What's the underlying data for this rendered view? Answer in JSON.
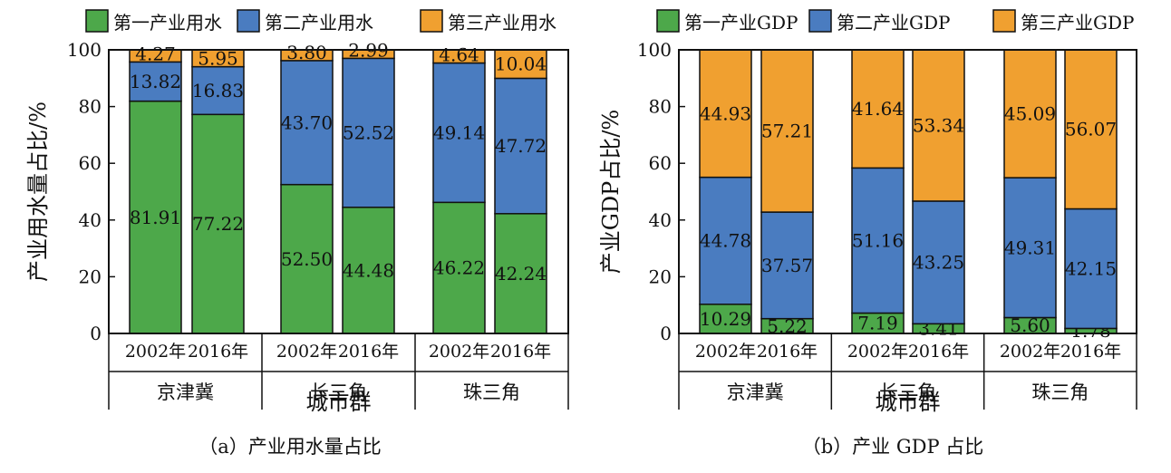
{
  "chart_data": [
    {
      "type": "bar",
      "stacked": true,
      "title": "",
      "xlabel": "城市群",
      "ylabel": "产业用水量占比/%",
      "ylim": [
        0,
        100
      ],
      "yticks": [
        0,
        20,
        40,
        60,
        80,
        100
      ],
      "grid": false,
      "legend_position": "top",
      "caption": "（a）产业用水量占比",
      "groups": [
        "京津冀",
        "长三角",
        "珠三角"
      ],
      "categories": [
        "2002年",
        "2016年",
        "2002年",
        "2016年",
        "2002年",
        "2016年"
      ],
      "series": [
        {
          "name": "第一产业用水",
          "color": "#4da84a",
          "values": [
            81.91,
            77.22,
            52.5,
            44.48,
            46.22,
            42.24
          ],
          "labels": [
            "81.91",
            "77.22",
            "52.50",
            "44.48",
            "46.22",
            "42.24"
          ]
        },
        {
          "name": "第二产业用水",
          "color": "#4a7cc0",
          "values": [
            13.82,
            16.83,
            43.7,
            52.52,
            49.14,
            47.72
          ],
          "labels": [
            "13.82",
            "16.83",
            "43.70",
            "52.52",
            "49.14",
            "47.72"
          ]
        },
        {
          "name": "第三产业用水",
          "color": "#f0a030",
          "values": [
            4.27,
            5.95,
            3.8,
            2.99,
            4.64,
            10.04
          ],
          "labels": [
            "4.27",
            "5.95",
            "3.80",
            "2.99",
            "4.64",
            "10.04"
          ]
        }
      ]
    },
    {
      "type": "bar",
      "stacked": true,
      "title": "",
      "xlabel": "城市群",
      "ylabel": "产业GDP占比/%",
      "ylim": [
        0,
        100
      ],
      "yticks": [
        0,
        20,
        40,
        60,
        80,
        100
      ],
      "grid": false,
      "legend_position": "top",
      "caption": "（b）产业 GDP 占比",
      "groups": [
        "京津冀",
        "长三角",
        "珠三角"
      ],
      "categories": [
        "2002年",
        "2016年",
        "2002年",
        "2016年",
        "2002年",
        "2016年"
      ],
      "series": [
        {
          "name": "第一产业GDP",
          "color": "#4da84a",
          "values": [
            10.29,
            5.22,
            7.19,
            3.41,
            5.6,
            1.78
          ],
          "labels": [
            "10.29",
            "5.22",
            "7.19",
            "3.41",
            "5.60",
            "1.78"
          ]
        },
        {
          "name": "第二产业GDP",
          "color": "#4a7cc0",
          "values": [
            44.78,
            37.57,
            51.16,
            43.25,
            49.31,
            42.15
          ],
          "labels": [
            "44.78",
            "37.57",
            "51.16",
            "43.25",
            "49.31",
            "42.15"
          ]
        },
        {
          "name": "第三产业GDP",
          "color": "#f0a030",
          "values": [
            44.93,
            57.21,
            41.64,
            53.34,
            45.09,
            56.07
          ],
          "labels": [
            "44.93",
            "57.21",
            "41.64",
            "53.34",
            "45.09",
            "56.07"
          ]
        }
      ]
    }
  ]
}
